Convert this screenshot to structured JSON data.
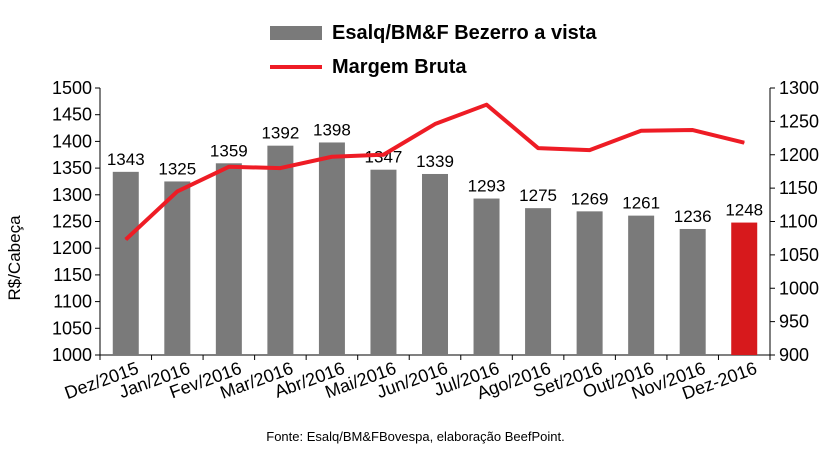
{
  "chart_data": {
    "type": "bar",
    "categories": [
      "Dez/2015",
      "Jan/2016",
      "Fev/2016",
      "Mar/2016",
      "Abr/2016",
      "Mai/2016",
      "Jun/2016",
      "Jul/2016",
      "Ago/2016",
      "Set/2016",
      "Out/2016",
      "Nov/2016",
      "Dez-2016"
    ],
    "series": [
      {
        "name": "Esalq/BM&F Bezerro a vista",
        "type": "bar",
        "axis": "left",
        "values": [
          1343,
          1325,
          1359,
          1392,
          1398,
          1347,
          1339,
          1293,
          1275,
          1269,
          1261,
          1236,
          1248
        ],
        "data_labels": [
          "1343",
          "1325",
          "1359",
          "1392",
          "1398",
          "1347",
          "1339",
          "1293",
          "1275",
          "1269",
          "1261",
          "1236",
          "1248"
        ]
      },
      {
        "name": "Margem Bruta",
        "type": "line",
        "axis": "right",
        "values": [
          1073,
          1145,
          1182,
          1180,
          1197,
          1200,
          1246,
          1275,
          1210,
          1207,
          1236,
          1237,
          1218
        ]
      }
    ],
    "ylabel": "R$/Cabeça",
    "ylim": [
      1000,
      1500
    ],
    "y_ticks": [
      "1000",
      "1050",
      "1100",
      "1150",
      "1200",
      "1250",
      "1300",
      "1350",
      "1400",
      "1450",
      "1500"
    ],
    "y2lim": [
      900,
      1300
    ],
    "y2_ticks": [
      "900",
      "950",
      "1000",
      "1050",
      "1100",
      "1150",
      "1200",
      "1250",
      "1300"
    ],
    "legend_position": "top-center",
    "grid": false,
    "colors": {
      "bar": "#7a7a7a",
      "highlight_bar": "#d7191c",
      "line": "#ee1c25"
    },
    "highlight_index": 12
  },
  "legend": {
    "bar_label": "Esalq/BM&F Bezerro a vista",
    "line_label": "Margem Bruta"
  },
  "source": "Fonte:  Esalq/BM&FBovespa,  elaboração  BeefPoint."
}
